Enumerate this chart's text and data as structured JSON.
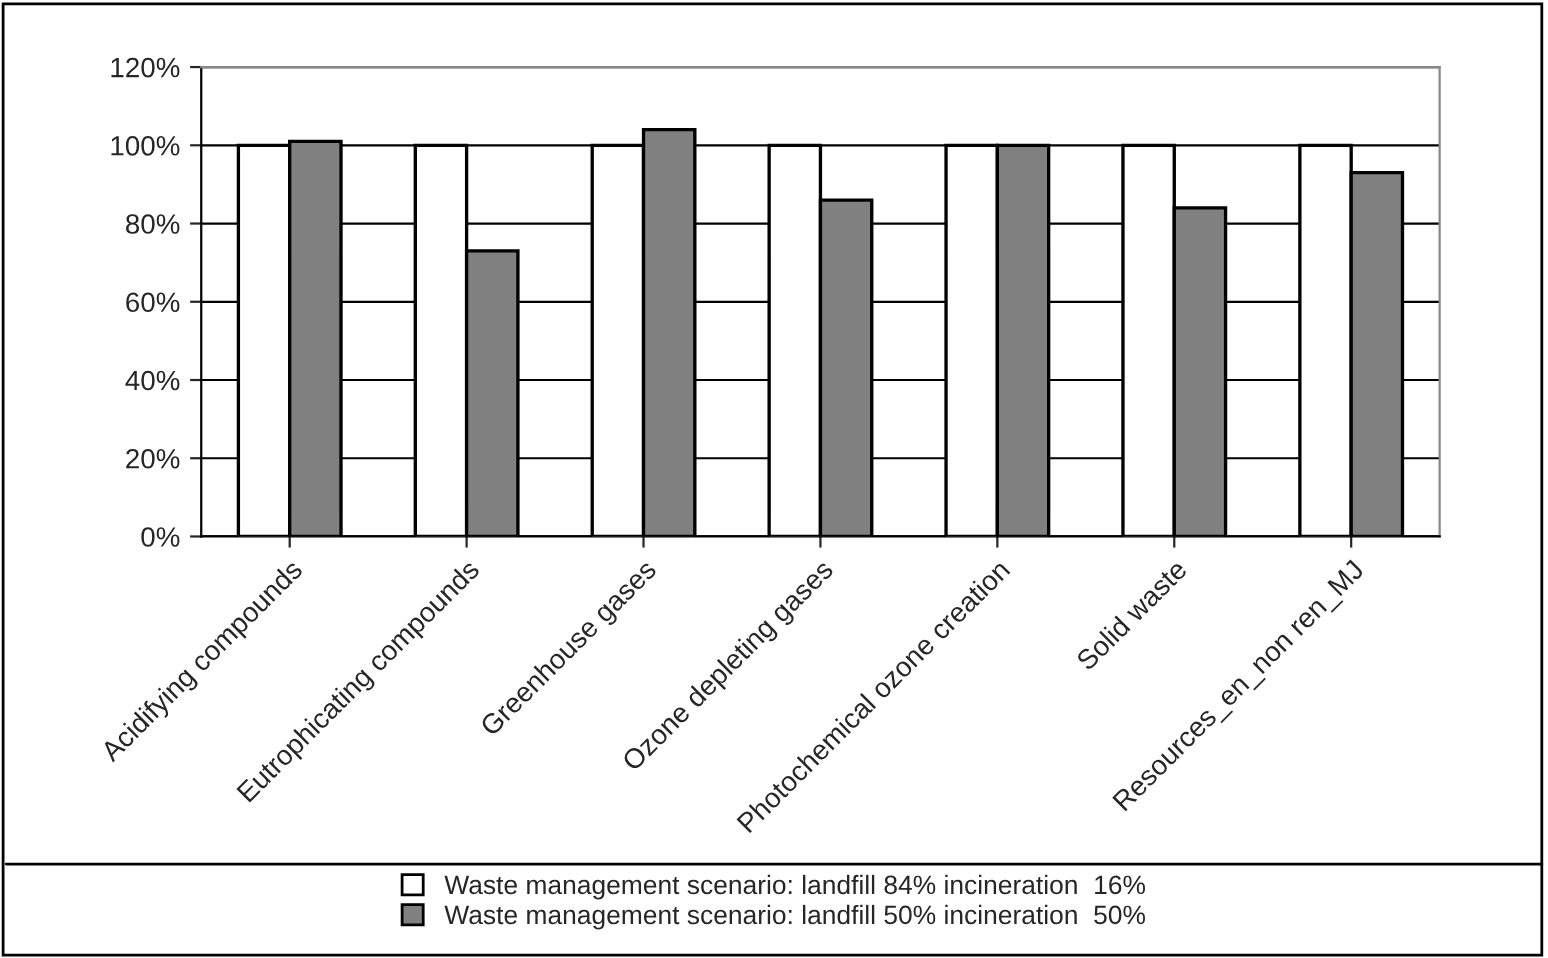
{
  "chart_data": {
    "type": "bar",
    "categories": [
      "Acidifying compounds",
      "Eutrophicating compounds",
      "Greenhouse gases",
      "Ozone depleting gases",
      "Photochemical ozone creation",
      "Solid waste",
      "Resources_en_non ren_MJ"
    ],
    "series": [
      {
        "name": "Waste management scenario: landfill 84% incineration  16%",
        "color": "#ffffff",
        "values": [
          100,
          100,
          100,
          100,
          100,
          100,
          100
        ]
      },
      {
        "name": "Waste management scenario: landfill 50% incineration  50%",
        "color": "#808080",
        "values": [
          101,
          73,
          104,
          86,
          100,
          84,
          93
        ]
      }
    ],
    "ylim": [
      0,
      120
    ],
    "yticks": [
      {
        "value": 0,
        "label": "0%"
      },
      {
        "value": 20,
        "label": "20%"
      },
      {
        "value": 40,
        "label": "40%"
      },
      {
        "value": 60,
        "label": "60%"
      },
      {
        "value": 80,
        "label": "80%"
      },
      {
        "value": 100,
        "label": "100%"
      },
      {
        "value": 120,
        "label": "120%"
      }
    ],
    "grid": "y",
    "legend": "bottom"
  }
}
